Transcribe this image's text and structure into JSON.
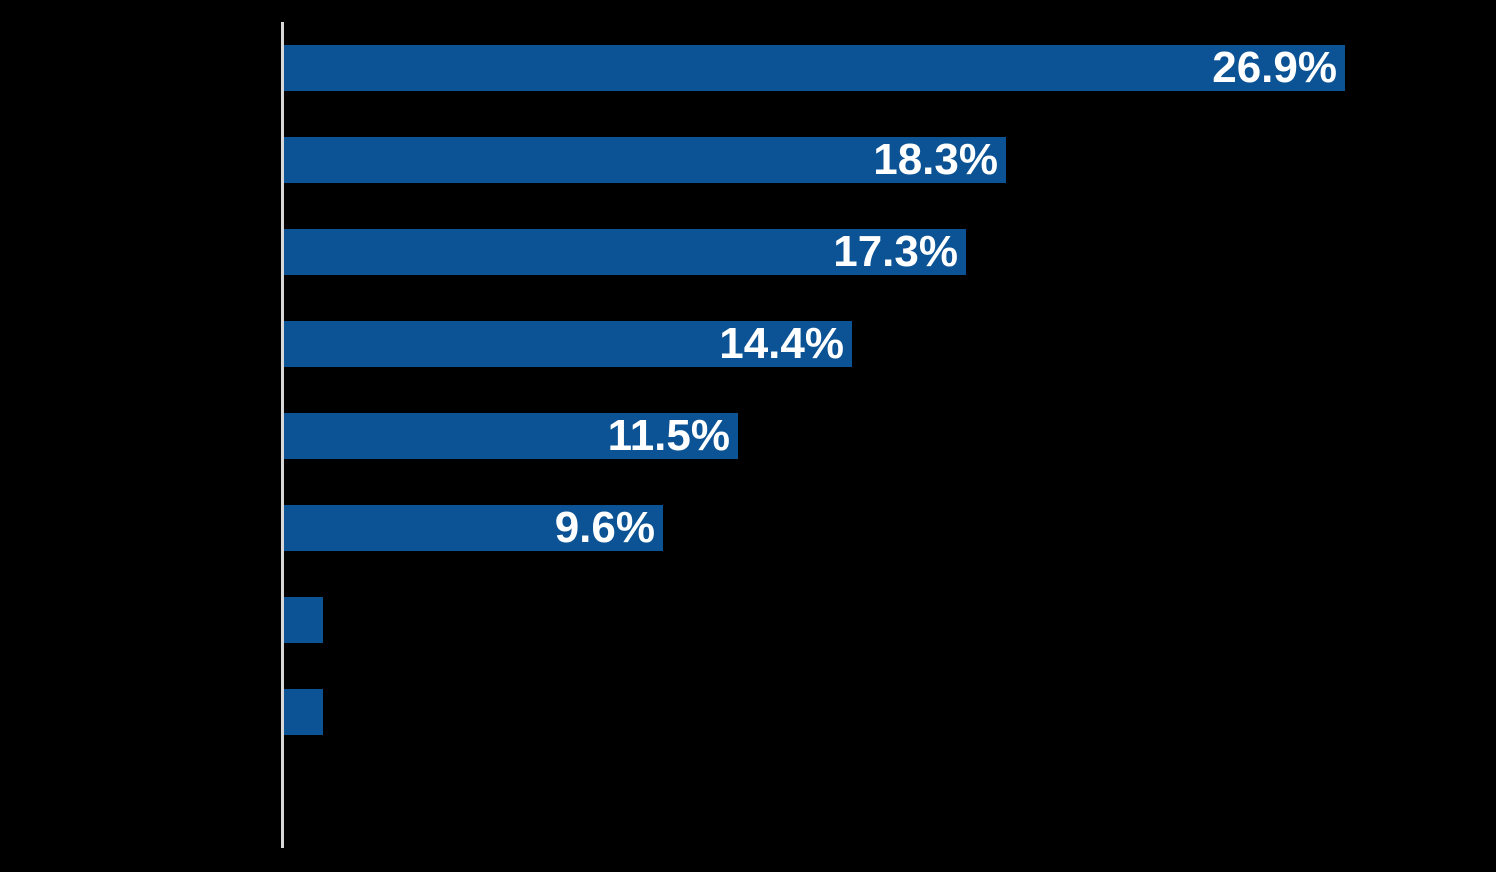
{
  "chart_data": {
    "type": "bar",
    "orientation": "horizontal",
    "title": "",
    "bars": [
      {
        "value": 26.9,
        "label": "26.9%"
      },
      {
        "value": 18.3,
        "label": "18.3%"
      },
      {
        "value": 17.3,
        "label": "17.3%"
      },
      {
        "value": 14.4,
        "label": "14.4%"
      },
      {
        "value": 11.5,
        "label": "11.5%"
      },
      {
        "value": 9.6,
        "label": "9.6%"
      },
      {
        "value": 1.0,
        "label": ""
      },
      {
        "value": 1.0,
        "label": ""
      }
    ],
    "value_unit": "%",
    "xlim": [
      0,
      30.75
    ],
    "grid": false,
    "legend": "none",
    "axis_ticks_visible": false,
    "category_labels_visible": false,
    "colors": {
      "background": "#000000",
      "bar": "#0B5394",
      "data_label": "#FFFFFF",
      "axis_line": "#D8D8D8"
    }
  }
}
